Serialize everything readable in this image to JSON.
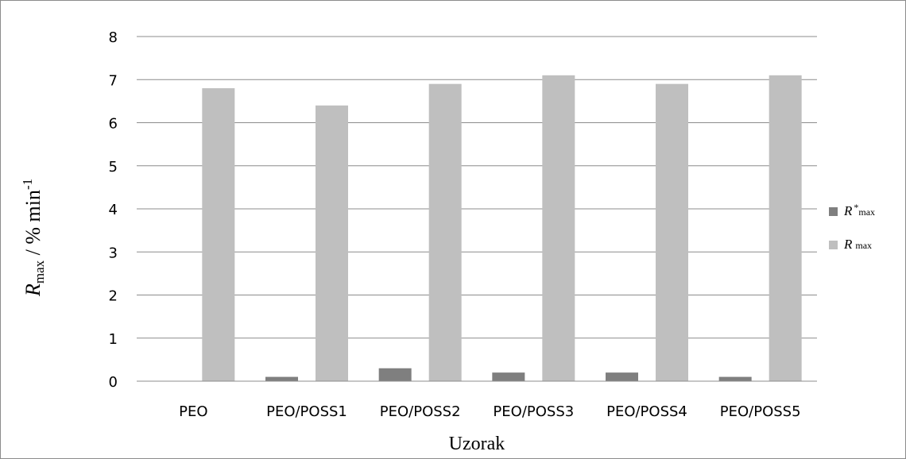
{
  "chart_data": {
    "type": "bar",
    "categories": [
      "PEO",
      "PEO/POSS1",
      "PEO/POSS2",
      "PEO/POSS3",
      "PEO/POSS4",
      "PEO/POSS5"
    ],
    "series": [
      {
        "name": "R*max",
        "name_main": "R",
        "name_sup": "*",
        "name_sub": "max",
        "color": "#7f7f7f",
        "values": [
          0,
          0.1,
          0.3,
          0.2,
          0.2,
          0.1
        ]
      },
      {
        "name": "R max",
        "name_main": "R",
        "name_sup": "",
        "name_sub": "max",
        "color": "#bfbfbf",
        "values": [
          6.8,
          6.4,
          6.9,
          7.1,
          6.9,
          7.1
        ]
      }
    ],
    "xlabel": "Uzorak",
    "ylabel": {
      "main": "R",
      "sub": "max",
      "rest": " / % min",
      "sup": "-1"
    },
    "ylim": [
      0,
      8
    ],
    "yticks": [
      0,
      1,
      2,
      3,
      4,
      5,
      6,
      7,
      8
    ],
    "grid": true,
    "legend_position": "right"
  }
}
